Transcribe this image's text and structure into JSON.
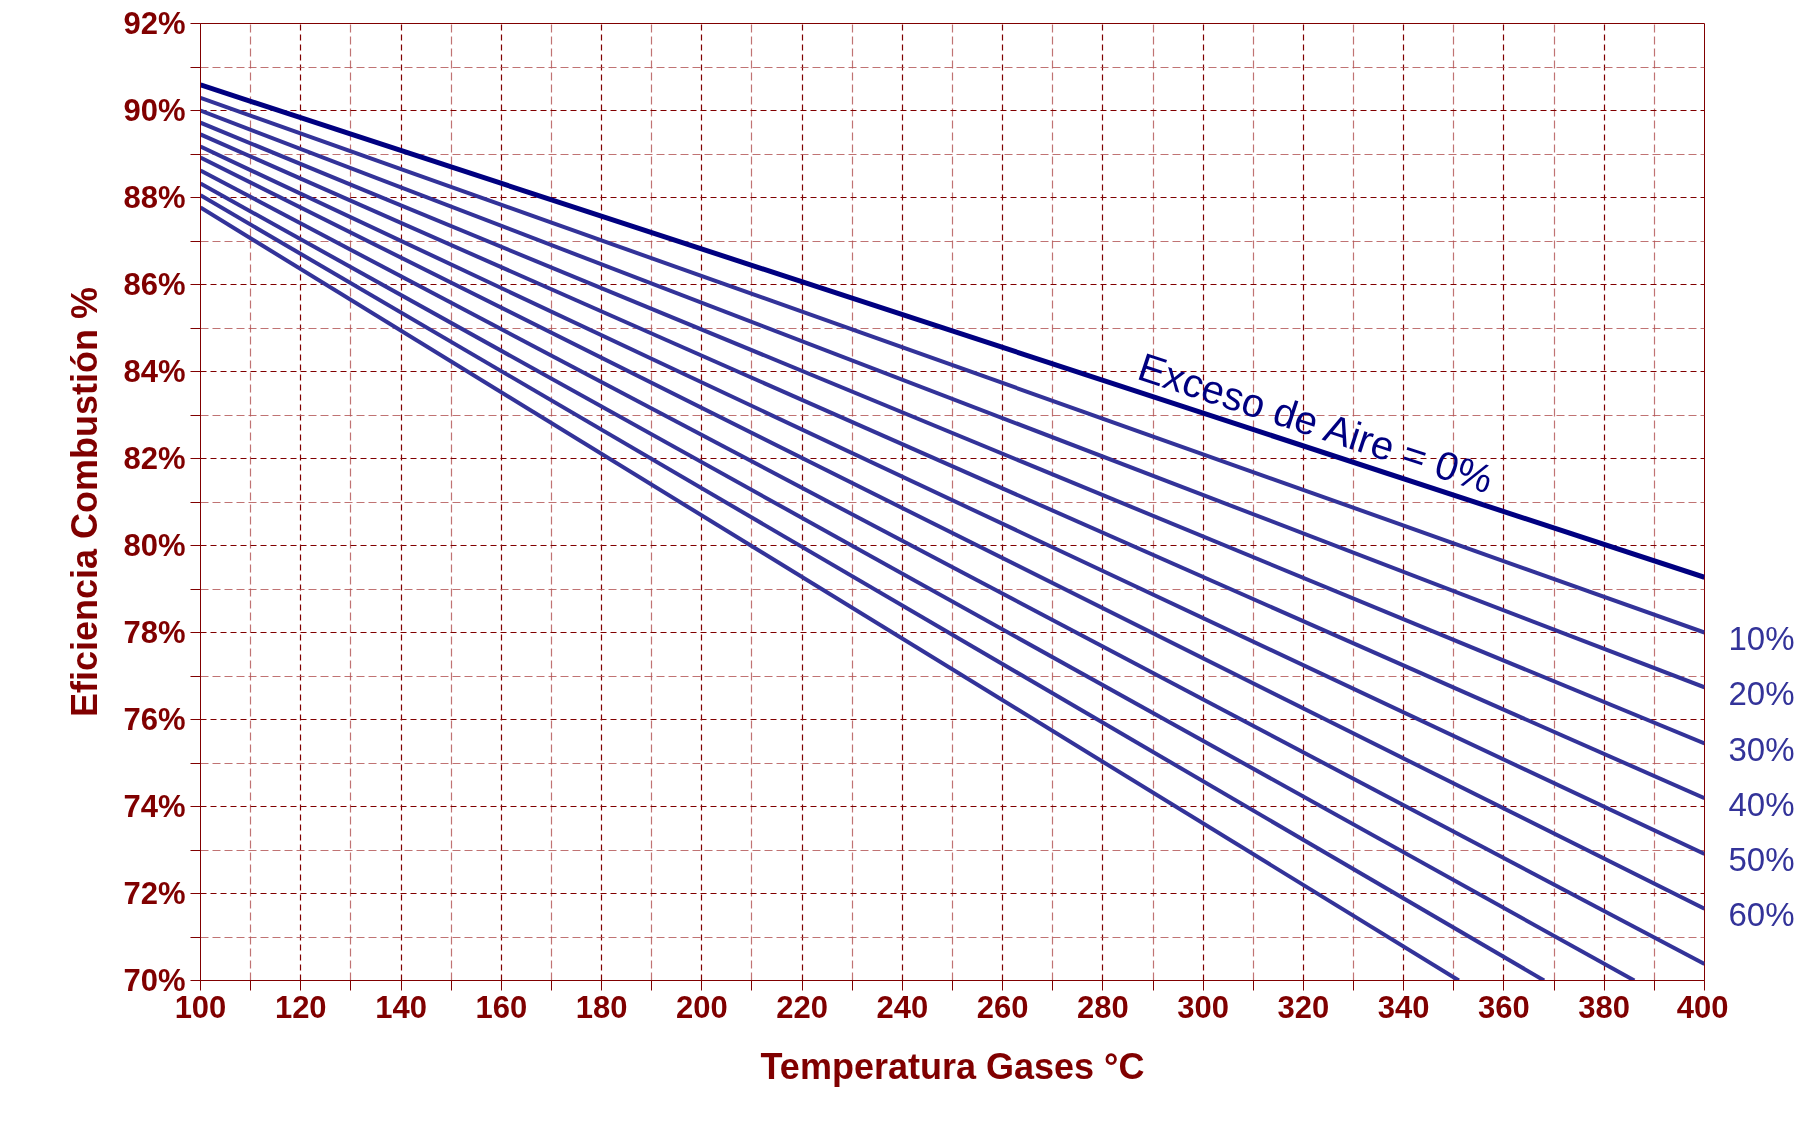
{
  "chart_data": {
    "type": "line",
    "xlabel": "Temperatura Gases °C",
    "ylabel": "Eficiencia Combustión %",
    "xlim": [
      100,
      400
    ],
    "ylim": [
      70,
      92
    ],
    "xticks": [
      100,
      {
        "value": 110,
        "label": null
      },
      120,
      {
        "value": 130,
        "label": null
      },
      140,
      {
        "value": 150,
        "label": null
      },
      160,
      {
        "value": 170,
        "label": null
      },
      180,
      {
        "value": 190,
        "label": null
      },
      200,
      {
        "value": 210,
        "label": null
      },
      220,
      {
        "value": 230,
        "label": null
      },
      240,
      {
        "value": 250,
        "label": null
      },
      260,
      {
        "value": 270,
        "label": null
      },
      280,
      {
        "value": 290,
        "label": null
      },
      300,
      {
        "value": 310,
        "label": null
      },
      320,
      {
        "value": 330,
        "label": null
      },
      340,
      {
        "value": 350,
        "label": null
      },
      360,
      {
        "value": 370,
        "label": null
      },
      380,
      {
        "value": 390,
        "label": null
      },
      400
    ],
    "yticks": [
      {
        "value": 70,
        "label": "70%"
      },
      {
        "value": 71,
        "label": null
      },
      {
        "value": 72,
        "label": "72%"
      },
      {
        "value": 73,
        "label": null
      },
      {
        "value": 74,
        "label": "74%"
      },
      {
        "value": 75,
        "label": null
      },
      {
        "value": 76,
        "label": "76%"
      },
      {
        "value": 77,
        "label": null
      },
      {
        "value": 78,
        "label": "78%"
      },
      {
        "value": 79,
        "label": null
      },
      {
        "value": 80,
        "label": "80%"
      },
      {
        "value": 81,
        "label": null
      },
      {
        "value": 82,
        "label": "82%"
      },
      {
        "value": 83,
        "label": null
      },
      {
        "value": 84,
        "label": "84%"
      },
      {
        "value": 85,
        "label": null
      },
      {
        "value": 86,
        "label": "86%"
      },
      {
        "value": 87,
        "label": null
      },
      {
        "value": 88,
        "label": "88%"
      },
      {
        "value": 89,
        "label": null
      },
      {
        "value": 90,
        "label": "90%"
      },
      {
        "value": 91,
        "label": null
      },
      {
        "value": 92,
        "label": "92%"
      }
    ],
    "grid": true,
    "marker": "none",
    "line_style": "solid",
    "series": [
      {
        "name": "Exceso de Aire = 0%",
        "color": "#000080",
        "x": [
          100,
          400
        ],
        "values": [
          90.59,
          79.27
        ]
      },
      {
        "name": "10%",
        "color": "#333399",
        "x": [
          100,
          400
        ],
        "values": [
          90.29,
          78.0
        ]
      },
      {
        "name": "20%",
        "color": "#333399",
        "x": [
          100,
          400
        ],
        "values": [
          90.0,
          76.74
        ]
      },
      {
        "name": "30%",
        "color": "#333399",
        "x": [
          100,
          400
        ],
        "values": [
          89.72,
          75.45
        ]
      },
      {
        "name": "40%",
        "color": "#333399",
        "x": [
          100,
          400
        ],
        "values": [
          89.45,
          74.19
        ]
      },
      {
        "name": "50%",
        "color": "#333399",
        "x": [
          100,
          400
        ],
        "values": [
          89.17,
          72.91
        ]
      },
      {
        "name": "60%",
        "color": "#333399",
        "x": [
          100,
          400
        ],
        "values": [
          88.92,
          71.65
        ]
      },
      {
        "color": "#333399",
        "x": [
          100,
          400
        ],
        "values": [
          88.62,
          70.38
        ]
      },
      {
        "color": "#333399",
        "x": [
          100,
          386
        ],
        "values": [
          88.32,
          70.0
        ]
      },
      {
        "color": "#333399",
        "x": [
          100,
          368
        ],
        "values": [
          88.05,
          70.0
        ]
      },
      {
        "color": "#333399",
        "x": [
          100,
          351
        ],
        "values": [
          87.77,
          70.0
        ]
      }
    ]
  }
}
